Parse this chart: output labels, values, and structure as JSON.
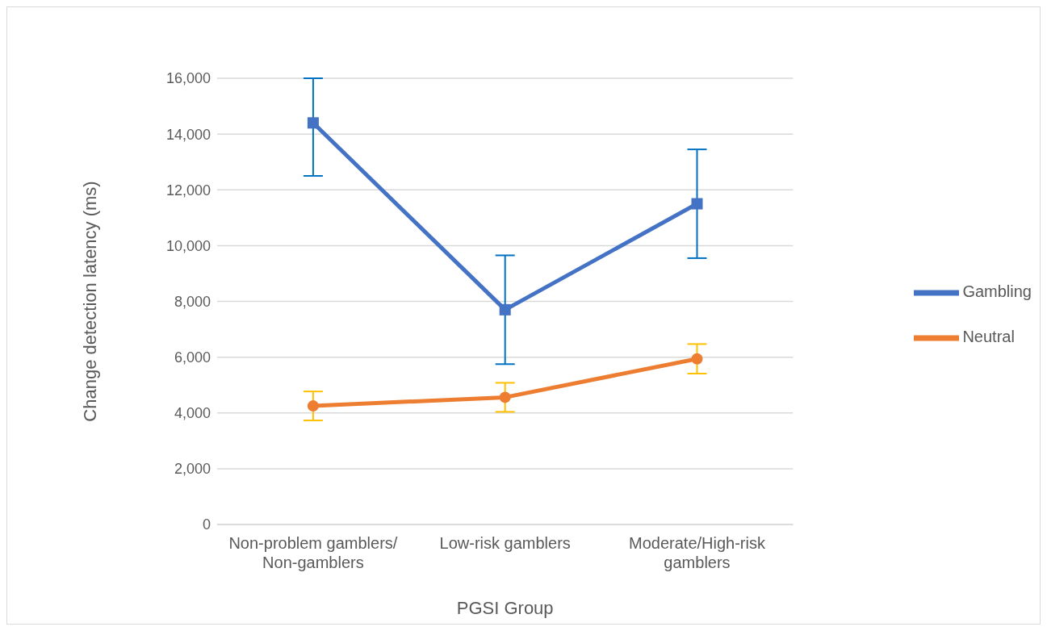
{
  "chart_data": {
    "type": "line",
    "xlabel": "PGSI Group",
    "ylabel": "Change detection latency (ms)",
    "categories": [
      "Non-problem gamblers/Non-gamblers",
      "Low-risk gamblers",
      "Moderate/High-risk gamblers"
    ],
    "series": [
      {
        "name": "Gambling",
        "color": "#4472c4",
        "marker": "square",
        "values": [
          14400,
          7700,
          11500
        ],
        "errors": [
          [
            12500,
            16000
          ],
          1950,
          1950
        ]
      },
      {
        "name": "Neutral",
        "color": "#ed7d31",
        "marker": "circle",
        "values": [
          4250,
          4560,
          5940
        ],
        "errors": [
          520,
          520,
          530
        ]
      }
    ],
    "ylim": [
      0,
      16000
    ],
    "yticks": [
      {
        "value": 0,
        "label": "0"
      },
      {
        "value": 2000,
        "label": "2,000"
      },
      {
        "value": 4000,
        "label": "4,000"
      },
      {
        "value": 6000,
        "label": "6,000"
      },
      {
        "value": 8000,
        "label": "8,000"
      },
      {
        "value": 10000,
        "label": "10,000"
      },
      {
        "value": 12000,
        "label": "12,000"
      },
      {
        "value": 14000,
        "label": "14,000"
      },
      {
        "value": 16000,
        "label": "16,000"
      }
    ],
    "grid": "y",
    "legend": "right",
    "line_style": "solid"
  }
}
